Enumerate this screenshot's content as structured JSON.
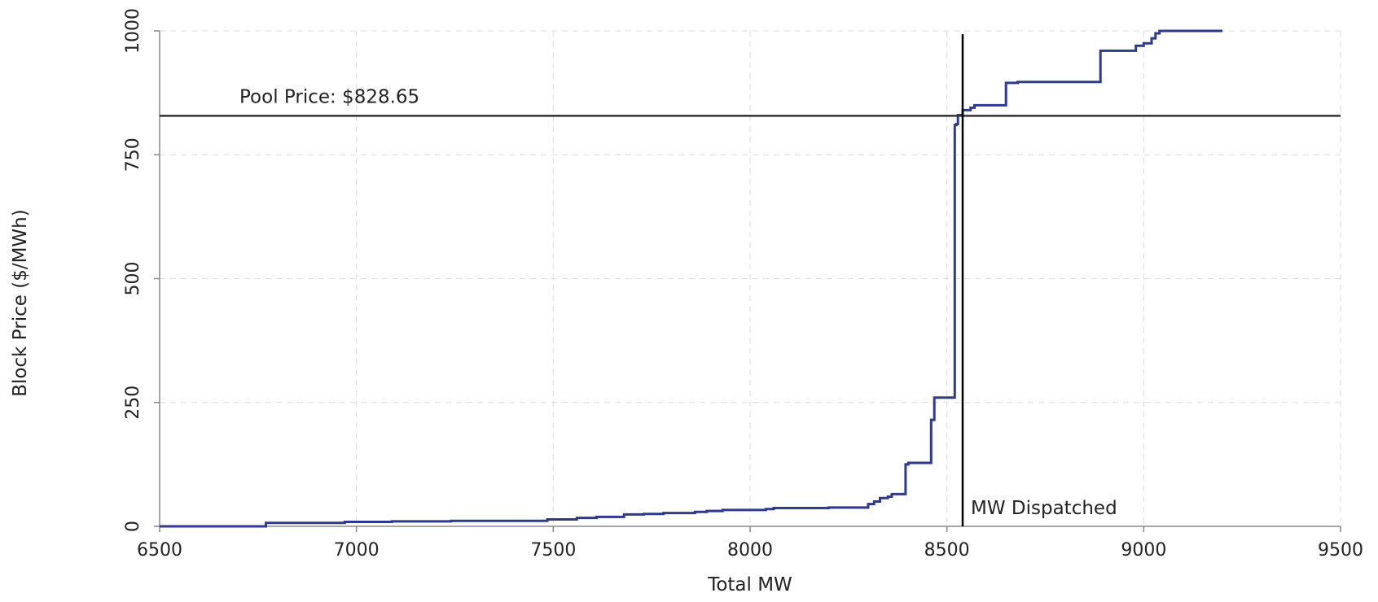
{
  "chart_data": {
    "type": "line",
    "title": "",
    "xlabel": "Total MW",
    "ylabel": "Block Price ($/MWh)",
    "xlim": [
      6500,
      9500
    ],
    "ylim": [
      0,
      1000
    ],
    "x_ticks": [
      6500,
      7000,
      7500,
      8000,
      8500,
      9000,
      9500
    ],
    "y_ticks": [
      0,
      250,
      500,
      750,
      1000
    ],
    "x_tick_labels": [
      "6500",
      "7000",
      "7500",
      "8000",
      "8500",
      "9000",
      "9500"
    ],
    "y_tick_labels": [
      "0",
      "250",
      "500",
      "750",
      "1000"
    ],
    "grid": true,
    "line_style": "step",
    "series_color": "#2e3a8c",
    "series": [
      {
        "x": [
          6500,
          6770,
          6770,
          6970,
          6970,
          7090,
          7090,
          7240,
          7240,
          7485,
          7485,
          7560,
          7560,
          7610,
          7610,
          7680,
          7680,
          7730,
          7730,
          7780,
          7780,
          7860,
          7860,
          7890,
          7890,
          7930,
          7930,
          8040,
          8040,
          8060,
          8060,
          8200,
          8200,
          8300,
          8300,
          8315,
          8315,
          8330,
          8330,
          8350,
          8350,
          8360,
          8360,
          8395,
          8395,
          8402,
          8402,
          8460,
          8460,
          8468,
          8468,
          8520,
          8520,
          8524,
          8524,
          8528,
          8528,
          8540,
          8540,
          8560,
          8560,
          8570,
          8570,
          8650,
          8650,
          8680,
          8680,
          8890,
          8890,
          8980,
          8980,
          9000,
          9000,
          9020,
          9020,
          9030,
          9030,
          9040,
          9040,
          9200
        ],
        "y": [
          0,
          0,
          7,
          7,
          9,
          9,
          10,
          10,
          11,
          11,
          14,
          14,
          17,
          17,
          19,
          19,
          24,
          24,
          25,
          25,
          27,
          27,
          29,
          29,
          31,
          31,
          33,
          33,
          35,
          35,
          37,
          37,
          38,
          38,
          45,
          45,
          50,
          50,
          57,
          57,
          60,
          60,
          65,
          65,
          125,
          125,
          128,
          128,
          215,
          215,
          260,
          260,
          810,
          810,
          812,
          812,
          830,
          830,
          840,
          840,
          845,
          845,
          850,
          850,
          895,
          895,
          897,
          897,
          960,
          960,
          970,
          970,
          975,
          975,
          985,
          985,
          995,
          995,
          1000,
          1000
        ]
      }
    ],
    "annotations": [
      {
        "type": "hline",
        "y": 828.65,
        "label": "Pool Price:  $828.65",
        "color": "#333333"
      },
      {
        "type": "vline",
        "x": 8540,
        "label": "MW Dispatched",
        "color": "#000000"
      }
    ]
  }
}
